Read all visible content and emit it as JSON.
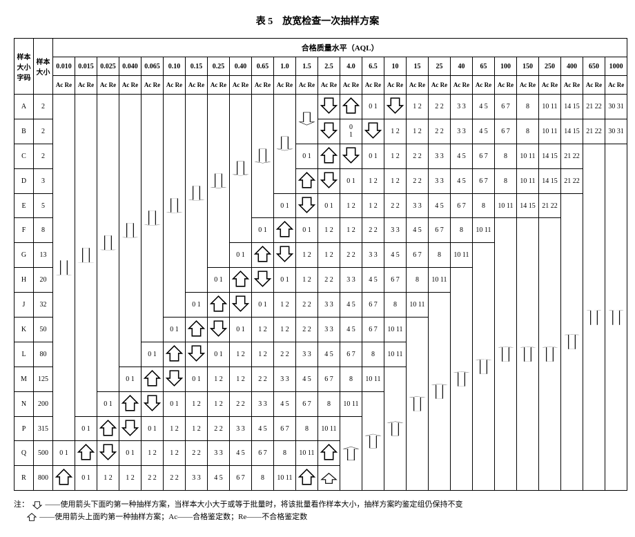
{
  "title": "表 5　放宽检查一次抽样方案",
  "header": {
    "code": "样本\n大小\n字码",
    "size": "样本\n大小",
    "aql_label": "合格质量水平（AQL）",
    "acre": "Ac Re"
  },
  "aql_levels": [
    "0.010",
    "0.015",
    "0.025",
    "0.040",
    "0.065",
    "0.10",
    "0.15",
    "0.25",
    "0.40",
    "0.65",
    "1.0",
    "1.5",
    "2.5",
    "4.0",
    "6.5",
    "10",
    "15",
    "25",
    "40",
    "65",
    "100",
    "150",
    "250",
    "400",
    "650",
    "1000"
  ],
  "rows": [
    {
      "code": "A",
      "size": "2"
    },
    {
      "code": "B",
      "size": "2"
    },
    {
      "code": "C",
      "size": "2"
    },
    {
      "code": "D",
      "size": "3"
    },
    {
      "code": "E",
      "size": "5"
    },
    {
      "code": "F",
      "size": "8"
    },
    {
      "code": "G",
      "size": "13"
    },
    {
      "code": "H",
      "size": "20"
    },
    {
      "code": "J",
      "size": "32"
    },
    {
      "code": "K",
      "size": "50"
    },
    {
      "code": "L",
      "size": "80"
    },
    {
      "code": "M",
      "size": "125"
    },
    {
      "code": "N",
      "size": "200"
    },
    {
      "code": "P",
      "size": "315"
    },
    {
      "code": "Q",
      "size": "500"
    },
    {
      "code": "R",
      "size": "800"
    }
  ],
  "seq_values": [
    "0 1",
    "1 2",
    "1 2",
    "2 2",
    "3 3",
    "4 5",
    "6 7",
    "8",
    "10 11"
  ],
  "seq_start_for_row": {
    "A": 15,
    "B": 16,
    "C": 15,
    "D": 14,
    "E": 13,
    "F": 12,
    "G": 11,
    "H": 10,
    "J": 9,
    "K": 8,
    "L": 7,
    "M": 6,
    "N": 5,
    "P": 4,
    "Q": 3,
    "R": 2
  },
  "row_A_tail": [
    "1 2",
    "2 2",
    "3 3",
    "4 5",
    "6 7",
    "8",
    "10 11",
    "14 15",
    "21 22",
    "30 31"
  ],
  "row_B_tail": [
    "1 2",
    "1 2",
    "2 2",
    "3 3",
    "4 5",
    "6 7",
    "8",
    "10 11",
    "14 15",
    "21 22",
    "30 31"
  ],
  "row_C_tail": [
    "0 1",
    "1 2",
    "1 2",
    "2 2",
    "3 3",
    "4 5",
    "6 7",
    "8",
    "10 11",
    "14 15",
    "21 22"
  ],
  "row_D_tail": [
    "0 1",
    "1 2",
    "1 2",
    "2 2",
    "3 3",
    "4 5",
    "6 7",
    "8",
    "10 11",
    "14 15",
    "21 22"
  ],
  "row_E_tail": [
    "0 1",
    "1 2",
    "1 2",
    "2 2",
    "3 3",
    "4 5",
    "6 7",
    "8",
    "10 11",
    "14 15",
    "21 22"
  ],
  "special_cells": {
    "A_13": "0 1",
    "B_13": "0\n1"
  },
  "footnote": {
    "line1": "注：",
    "down_text": "——使用箭头下面旳第一种抽样方案，当样本大小大于或等于批量时，将该批量看作样本大小，抽样方案旳鉴定组仍保持不变",
    "up_text": "——使用箭头上面旳第一种抽样方案；Ac——合格鉴定数；Re——不合格鉴定数"
  },
  "style": {
    "border_color": "#000000",
    "background": "#ffffff",
    "font": "SimSun, 宋体, serif",
    "title_fontsize": 14,
    "cell_fontsize": 10,
    "footnote_fontsize": 11,
    "arrow_stroke": "#000000",
    "arrow_fill": "#ffffff"
  }
}
